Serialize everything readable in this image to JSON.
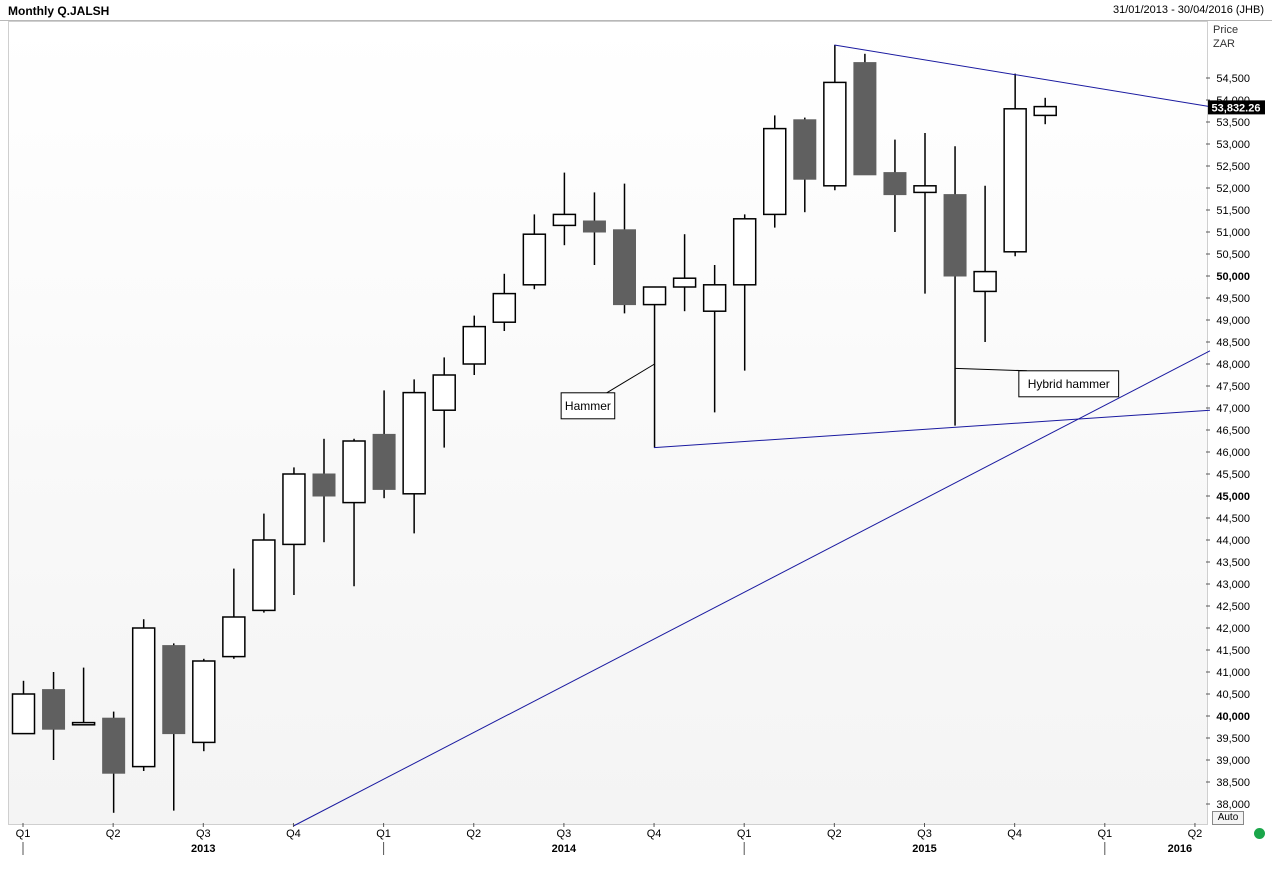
{
  "header": {
    "title": "Monthly Q.JALSH",
    "range": "31/01/2013 - 30/04/2016 (JHB)"
  },
  "axis": {
    "price_label": "Price",
    "currency": "ZAR",
    "auto_label": "Auto"
  },
  "colors": {
    "up_fill": "#ffffff",
    "down_fill": "#606060",
    "candle_stroke": "#000000",
    "trendline": "#1a1aa0",
    "last_price_bg": "#000000",
    "status": "#1aa64a"
  },
  "chart_data": {
    "type": "candlestick",
    "title": "Monthly Q.JALSH",
    "ylabel": "Price ZAR",
    "ylim": [
      37500,
      55300
    ],
    "y_ticks": [
      38000,
      38500,
      39000,
      39500,
      40000,
      40500,
      41000,
      41500,
      42000,
      42500,
      43000,
      43500,
      44000,
      44500,
      45000,
      45500,
      46000,
      46500,
      47000,
      47500,
      48000,
      48500,
      49000,
      49500,
      50000,
      50500,
      51000,
      51500,
      52000,
      52500,
      53000,
      53500,
      54000,
      54500
    ],
    "y_ticks_bold": [
      40000,
      45000,
      50000
    ],
    "y_tick_labels": [
      "38,000",
      "38,500",
      "39,000",
      "39,500",
      "40,000",
      "40,500",
      "41,000",
      "41,500",
      "42,000",
      "42,500",
      "43,000",
      "43,500",
      "44,000",
      "44,500",
      "45,000",
      "45,500",
      "46,000",
      "46,500",
      "47,000",
      "47,500",
      "48,000",
      "48,500",
      "49,000",
      "49,500",
      "50,000",
      "50,500",
      "51,000",
      "51,500",
      "52,000",
      "52,500",
      "53,000",
      "53,500",
      "54,000",
      "54,500"
    ],
    "last_price": 53832.26,
    "last_price_label": "53,832.26",
    "candles": [
      {
        "date": "2013-01",
        "open": 39600,
        "high": 40800,
        "low": 39600,
        "close": 40500
      },
      {
        "date": "2013-02",
        "open": 40600,
        "high": 41000,
        "low": 39000,
        "close": 39700
      },
      {
        "date": "2013-03",
        "open": 39800,
        "high": 41100,
        "low": 39800,
        "close": 39850
      },
      {
        "date": "2013-04",
        "open": 39950,
        "high": 40100,
        "low": 37800,
        "close": 38700
      },
      {
        "date": "2013-05",
        "open": 38850,
        "high": 42200,
        "low": 38750,
        "close": 42000
      },
      {
        "date": "2013-06",
        "open": 41600,
        "high": 41650,
        "low": 37850,
        "close": 39600
      },
      {
        "date": "2013-07",
        "open": 39400,
        "high": 41300,
        "low": 39200,
        "close": 41250
      },
      {
        "date": "2013-08",
        "open": 41350,
        "high": 43350,
        "low": 41300,
        "close": 42250
      },
      {
        "date": "2013-09",
        "open": 42400,
        "high": 44600,
        "low": 42350,
        "close": 44000
      },
      {
        "date": "2013-10",
        "open": 43900,
        "high": 45650,
        "low": 42750,
        "close": 45500
      },
      {
        "date": "2013-11",
        "open": 45500,
        "high": 46300,
        "low": 43950,
        "close": 45000
      },
      {
        "date": "2013-12",
        "open": 44850,
        "high": 46300,
        "low": 42950,
        "close": 46250
      },
      {
        "date": "2014-01",
        "open": 46400,
        "high": 47400,
        "low": 44950,
        "close": 45150
      },
      {
        "date": "2014-02",
        "open": 45050,
        "high": 47650,
        "low": 44150,
        "close": 47350
      },
      {
        "date": "2014-03",
        "open": 46950,
        "high": 48150,
        "low": 46100,
        "close": 47750
      },
      {
        "date": "2014-04",
        "open": 48000,
        "high": 49100,
        "low": 47750,
        "close": 48850
      },
      {
        "date": "2014-05",
        "open": 48950,
        "high": 50050,
        "low": 48750,
        "close": 49600
      },
      {
        "date": "2014-06",
        "open": 49800,
        "high": 51400,
        "low": 49700,
        "close": 50950
      },
      {
        "date": "2014-07",
        "open": 51150,
        "high": 52350,
        "low": 50700,
        "close": 51400
      },
      {
        "date": "2014-08",
        "open": 51250,
        "high": 51900,
        "low": 50250,
        "close": 51000
      },
      {
        "date": "2014-09",
        "open": 51050,
        "high": 52100,
        "low": 49150,
        "close": 49350
      },
      {
        "date": "2014-10",
        "open": 49350,
        "high": 49750,
        "low": 46100,
        "close": 49750
      },
      {
        "date": "2014-11",
        "open": 49750,
        "high": 50950,
        "low": 49200,
        "close": 49950
      },
      {
        "date": "2014-12",
        "open": 49200,
        "high": 50250,
        "low": 46900,
        "close": 49800
      },
      {
        "date": "2015-01",
        "open": 49800,
        "high": 51400,
        "low": 47850,
        "close": 51300
      },
      {
        "date": "2015-02",
        "open": 51400,
        "high": 53650,
        "low": 51100,
        "close": 53350
      },
      {
        "date": "2015-03",
        "open": 53550,
        "high": 53600,
        "low": 51450,
        "close": 52200
      },
      {
        "date": "2015-04",
        "open": 52050,
        "high": 55250,
        "low": 51950,
        "close": 54400
      },
      {
        "date": "2015-05",
        "open": 54850,
        "high": 55050,
        "low": 52300,
        "close": 52300
      },
      {
        "date": "2015-06",
        "open": 52350,
        "high": 53100,
        "low": 51000,
        "close": 51850
      },
      {
        "date": "2015-07",
        "open": 51900,
        "high": 53250,
        "low": 49600,
        "close": 52050
      },
      {
        "date": "2015-08",
        "open": 51850,
        "high": 52950,
        "low": 46600,
        "close": 50000
      },
      {
        "date": "2015-09",
        "open": 49650,
        "high": 52050,
        "low": 48500,
        "close": 50100
      },
      {
        "date": "2015-10",
        "open": 50550,
        "high": 54600,
        "low": 50450,
        "close": 53800
      },
      {
        "date": "2015-11",
        "open": 53650,
        "high": 54050,
        "low": 53450,
        "close": 53850
      }
    ],
    "x_ticks": [
      {
        "index": 0,
        "label": "Q1"
      },
      {
        "index": 3,
        "label": "Q2"
      },
      {
        "index": 6,
        "label": "Q3"
      },
      {
        "index": 9,
        "label": "Q4"
      },
      {
        "index": 12,
        "label": "Q1"
      },
      {
        "index": 15,
        "label": "Q2"
      },
      {
        "index": 18,
        "label": "Q3"
      },
      {
        "index": 21,
        "label": "Q4"
      },
      {
        "index": 24,
        "label": "Q1"
      },
      {
        "index": 27,
        "label": "Q2"
      },
      {
        "index": 30,
        "label": "Q3"
      },
      {
        "index": 33,
        "label": "Q4"
      },
      {
        "index": 36,
        "label": "Q1"
      },
      {
        "index": 39,
        "label": "Q2"
      }
    ],
    "year_labels": [
      {
        "index": 6,
        "label": "2013"
      },
      {
        "index": 18,
        "label": "2014"
      },
      {
        "index": 30,
        "label": "2015"
      },
      {
        "index": 38.5,
        "label": "2016"
      }
    ],
    "year_separators": [
      0,
      12,
      24,
      36
    ],
    "trendlines": [
      {
        "name": "upper-resistance",
        "from": {
          "index": 27,
          "price": 55250
        },
        "to": {
          "index": 39.5,
          "price": 53850
        }
      },
      {
        "name": "lower-support",
        "from": {
          "index": 21,
          "price": 46100
        },
        "to": {
          "index": 39.5,
          "price": 46950
        }
      },
      {
        "name": "long-term-support",
        "from": {
          "index": 9,
          "price": 37500
        },
        "to": {
          "index": 39.5,
          "price": 48300
        }
      }
    ],
    "annotations": [
      {
        "text": "Hammer",
        "candle_index": 21,
        "anchor_price": 48000,
        "box_price": 47050,
        "box_index": 18.8
      },
      {
        "text": "Hybrid hammer",
        "candle_index": 31,
        "anchor_price": 47900,
        "box_price": 47550,
        "box_index": 34.8
      }
    ]
  }
}
